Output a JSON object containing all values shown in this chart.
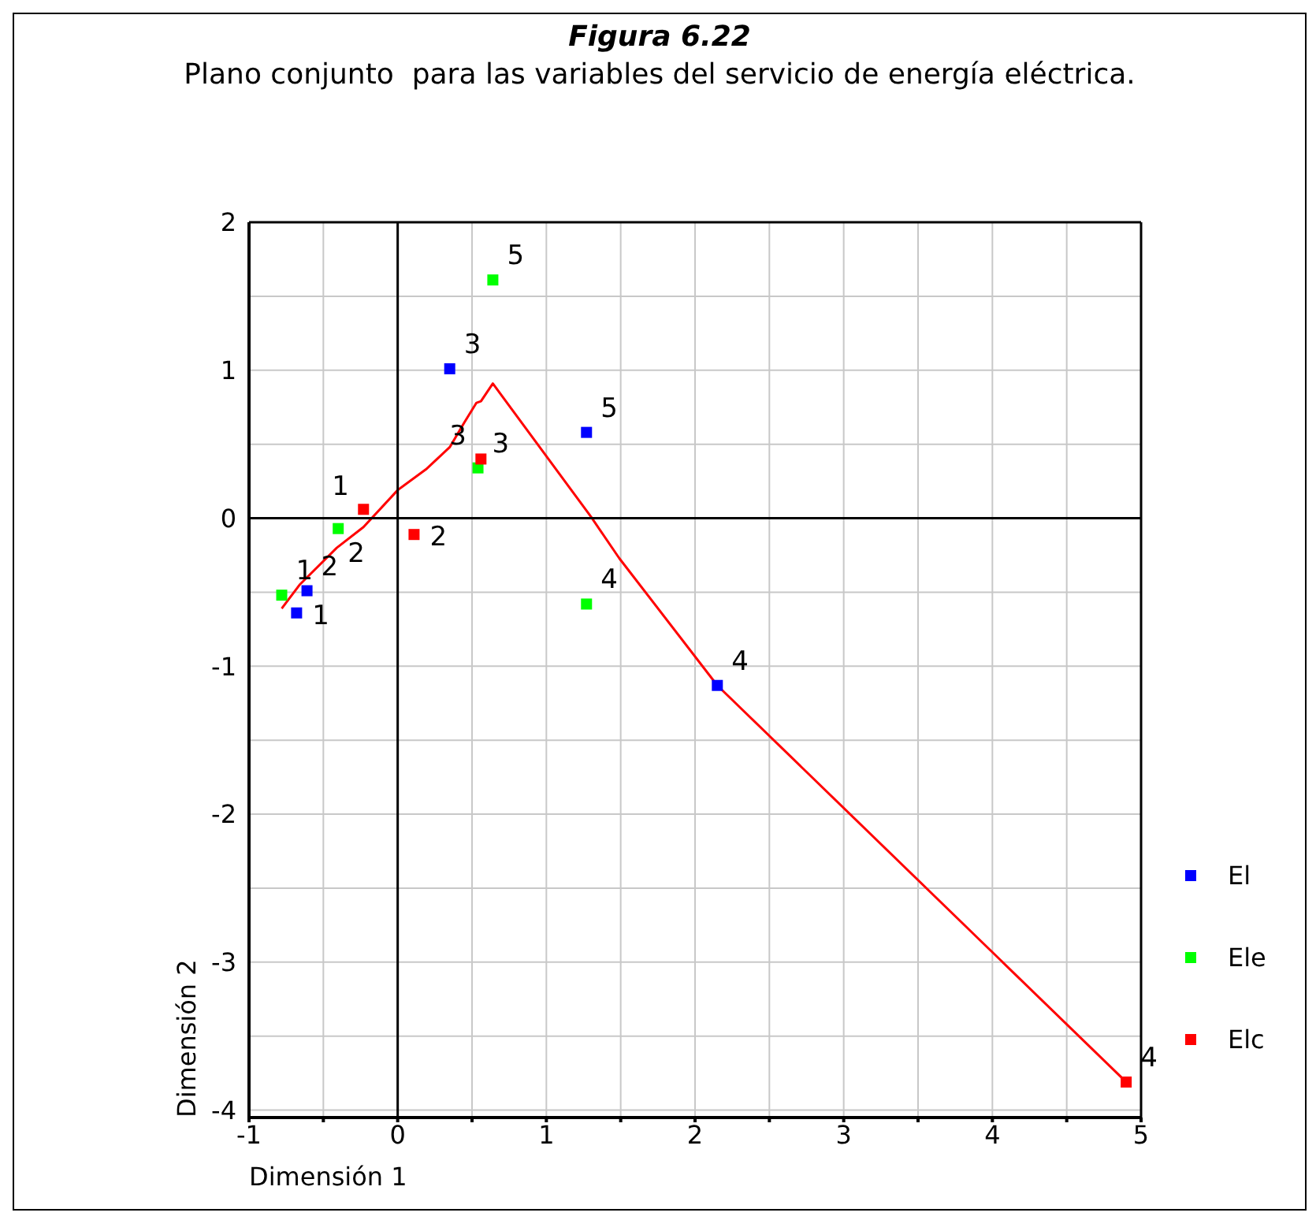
{
  "chart_data": {
    "type": "scatter",
    "title": "Figura 6.22",
    "subtitle": "Plano conjunto  para las variables del servicio de energía eléctrica.",
    "xlabel": "Dimensión 1",
    "ylabel": "Dimensión 2",
    "xlim": [
      -1,
      5
    ],
    "ylim": [
      -4.05,
      2
    ],
    "xticks": [
      -1,
      {
        "value": -0.5,
        "label": null
      },
      0,
      {
        "value": 0.5,
        "label": null
      },
      1,
      {
        "value": 1.5,
        "label": null
      },
      2,
      {
        "value": 2.5,
        "label": null
      },
      3,
      {
        "value": 3.5,
        "label": null
      },
      4,
      {
        "value": 4.5,
        "label": null
      },
      5
    ],
    "yticks": [
      -4,
      {
        "value": -3.5,
        "label": null
      },
      -3,
      {
        "value": -2.5,
        "label": null
      },
      -2,
      {
        "value": -1.5,
        "label": null
      },
      -1,
      {
        "value": -0.5,
        "label": null
      },
      0,
      {
        "value": 0.5,
        "label": null
      },
      1,
      {
        "value": 1.5,
        "label": null
      },
      2
    ],
    "grid": true,
    "legend": "right",
    "series": [
      {
        "name": "El",
        "color": "#0000ff",
        "marker": "square",
        "x": [
          -0.68,
          -0.61,
          0.35,
          2.15,
          1.27
        ],
        "values": [
          -0.64,
          -0.49,
          1.01,
          -1.13,
          0.58
        ]
      },
      {
        "name": "Ele",
        "color": "#00ff00",
        "marker": "square",
        "x": [
          -0.78,
          -0.4,
          0.54,
          1.27,
          0.64
        ],
        "values": [
          -0.52,
          -0.07,
          0.34,
          -0.58,
          1.61
        ]
      },
      {
        "name": "Elc",
        "color": "#ff0000",
        "marker": "square",
        "x": [
          -0.23,
          0.11,
          0.56,
          4.9
        ],
        "values": [
          0.06,
          -0.11,
          0.4,
          -3.81
        ]
      },
      {
        "type": "line",
        "color": "#ff0000",
        "marker": "none",
        "x": [
          -0.78,
          -0.66,
          -0.41,
          -0.23,
          0.0,
          0.19,
          0.35,
          0.45,
          0.53,
          0.56,
          0.64,
          1.3,
          1.49,
          2.15,
          4.9
        ],
        "values": [
          -0.61,
          -0.45,
          -0.2,
          -0.06,
          0.19,
          0.33,
          0.48,
          0.65,
          0.78,
          0.79,
          0.91,
          0.01,
          -0.27,
          -1.13,
          -3.81
        ]
      }
    ],
    "annotations": [
      {
        "text": "1",
        "x": -0.68,
        "y": -0.64
      },
      {
        "text": "2",
        "x": -0.61,
        "y": -0.49
      },
      {
        "text": "3",
        "x": 0.35,
        "y": 1.01
      },
      {
        "text": "4",
        "x": 2.15,
        "y": -1.13
      },
      {
        "text": "5",
        "x": 1.27,
        "y": 0.58
      },
      {
        "text": "1",
        "x": -0.78,
        "y": -0.52
      },
      {
        "text": "2",
        "x": -0.4,
        "y": -0.07
      },
      {
        "text": "3",
        "x": 0.54,
        "y": 0.34
      },
      {
        "text": "4",
        "x": 1.27,
        "y": -0.58
      },
      {
        "text": "5",
        "x": 0.64,
        "y": 1.61
      },
      {
        "text": "1",
        "x": -0.23,
        "y": 0.06
      },
      {
        "text": "2",
        "x": 0.11,
        "y": -0.11
      },
      {
        "text": "3",
        "x": 0.56,
        "y": 0.4
      },
      {
        "text": "4",
        "x": 4.9,
        "y": -3.81
      }
    ]
  }
}
